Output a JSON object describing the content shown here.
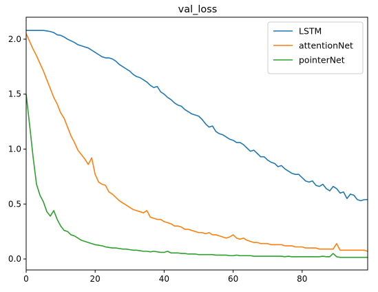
{
  "chart_data": {
    "type": "line",
    "title": "val_loss",
    "xlabel": "",
    "ylabel": "",
    "xlim": [
      0,
      99
    ],
    "ylim": [
      -0.1,
      2.2
    ],
    "xticks": [
      0,
      20,
      40,
      60,
      80
    ],
    "yticks": [
      0.0,
      0.5,
      1.0,
      1.5,
      2.0
    ],
    "grid": false,
    "legend_position": "top-right",
    "x": [
      0,
      1,
      2,
      3,
      4,
      5,
      6,
      7,
      8,
      9,
      10,
      11,
      12,
      13,
      14,
      15,
      16,
      17,
      18,
      19,
      20,
      21,
      22,
      23,
      24,
      25,
      26,
      27,
      28,
      29,
      30,
      31,
      32,
      33,
      34,
      35,
      36,
      37,
      38,
      39,
      40,
      41,
      42,
      43,
      44,
      45,
      46,
      47,
      48,
      49,
      50,
      51,
      52,
      53,
      54,
      55,
      56,
      57,
      58,
      59,
      60,
      61,
      62,
      63,
      64,
      65,
      66,
      67,
      68,
      69,
      70,
      71,
      72,
      73,
      74,
      75,
      76,
      77,
      78,
      79,
      80,
      81,
      82,
      83,
      84,
      85,
      86,
      87,
      88,
      89,
      90,
      91,
      92,
      93,
      94,
      95,
      96,
      97,
      98,
      99
    ],
    "series": [
      {
        "name": "LSTM",
        "color": "#1f77b4",
        "values": [
          2.08,
          2.08,
          2.08,
          2.08,
          2.08,
          2.08,
          2.075,
          2.07,
          2.06,
          2.04,
          2.035,
          2.02,
          2.0,
          1.985,
          1.97,
          1.95,
          1.94,
          1.93,
          1.92,
          1.9,
          1.88,
          1.86,
          1.84,
          1.83,
          1.83,
          1.82,
          1.8,
          1.77,
          1.75,
          1.73,
          1.71,
          1.68,
          1.66,
          1.65,
          1.63,
          1.61,
          1.58,
          1.56,
          1.57,
          1.52,
          1.5,
          1.47,
          1.45,
          1.42,
          1.4,
          1.39,
          1.36,
          1.34,
          1.32,
          1.31,
          1.3,
          1.27,
          1.23,
          1.2,
          1.21,
          1.16,
          1.14,
          1.13,
          1.11,
          1.09,
          1.08,
          1.06,
          1.06,
          1.04,
          1.01,
          0.98,
          0.99,
          0.96,
          0.93,
          0.93,
          0.9,
          0.88,
          0.87,
          0.84,
          0.85,
          0.82,
          0.8,
          0.78,
          0.77,
          0.77,
          0.74,
          0.71,
          0.7,
          0.71,
          0.67,
          0.66,
          0.68,
          0.64,
          0.62,
          0.66,
          0.64,
          0.6,
          0.61,
          0.55,
          0.59,
          0.58,
          0.54,
          0.53,
          0.54,
          0.54
        ]
      },
      {
        "name": "attentionNet",
        "color": "#ff7f0e",
        "values": [
          2.05,
          1.98,
          1.91,
          1.85,
          1.78,
          1.71,
          1.63,
          1.55,
          1.47,
          1.41,
          1.33,
          1.28,
          1.2,
          1.12,
          1.06,
          0.99,
          0.95,
          0.91,
          0.86,
          0.92,
          0.77,
          0.7,
          0.68,
          0.67,
          0.61,
          0.59,
          0.56,
          0.53,
          0.51,
          0.49,
          0.47,
          0.45,
          0.44,
          0.43,
          0.42,
          0.44,
          0.38,
          0.37,
          0.36,
          0.36,
          0.34,
          0.33,
          0.32,
          0.3,
          0.3,
          0.29,
          0.27,
          0.27,
          0.26,
          0.25,
          0.24,
          0.24,
          0.23,
          0.24,
          0.22,
          0.22,
          0.21,
          0.2,
          0.19,
          0.2,
          0.22,
          0.19,
          0.18,
          0.19,
          0.17,
          0.16,
          0.15,
          0.15,
          0.14,
          0.14,
          0.14,
          0.13,
          0.13,
          0.13,
          0.13,
          0.12,
          0.12,
          0.12,
          0.11,
          0.11,
          0.11,
          0.1,
          0.1,
          0.1,
          0.1,
          0.09,
          0.09,
          0.09,
          0.09,
          0.09,
          0.14,
          0.08,
          0.08,
          0.08,
          0.08,
          0.08,
          0.08,
          0.08,
          0.08,
          0.07
        ]
      },
      {
        "name": "pointerNet",
        "color": "#2ca02c",
        "values": [
          1.5,
          1.22,
          0.93,
          0.68,
          0.58,
          0.52,
          0.43,
          0.39,
          0.44,
          0.36,
          0.3,
          0.26,
          0.25,
          0.22,
          0.21,
          0.19,
          0.17,
          0.16,
          0.15,
          0.14,
          0.13,
          0.125,
          0.12,
          0.11,
          0.105,
          0.1,
          0.1,
          0.095,
          0.09,
          0.09,
          0.085,
          0.08,
          0.08,
          0.075,
          0.07,
          0.07,
          0.065,
          0.07,
          0.065,
          0.06,
          0.06,
          0.07,
          0.055,
          0.055,
          0.055,
          0.05,
          0.05,
          0.045,
          0.045,
          0.045,
          0.04,
          0.04,
          0.04,
          0.04,
          0.04,
          0.035,
          0.035,
          0.035,
          0.035,
          0.03,
          0.03,
          0.035,
          0.03,
          0.03,
          0.03,
          0.03,
          0.025,
          0.025,
          0.025,
          0.025,
          0.025,
          0.025,
          0.025,
          0.025,
          0.025,
          0.02,
          0.025,
          0.02,
          0.02,
          0.02,
          0.02,
          0.02,
          0.02,
          0.02,
          0.02,
          0.02,
          0.025,
          0.02,
          0.02,
          0.05,
          0.02,
          0.015,
          0.015,
          0.015,
          0.015,
          0.015,
          0.015,
          0.015,
          0.015,
          0.015
        ]
      }
    ]
  }
}
